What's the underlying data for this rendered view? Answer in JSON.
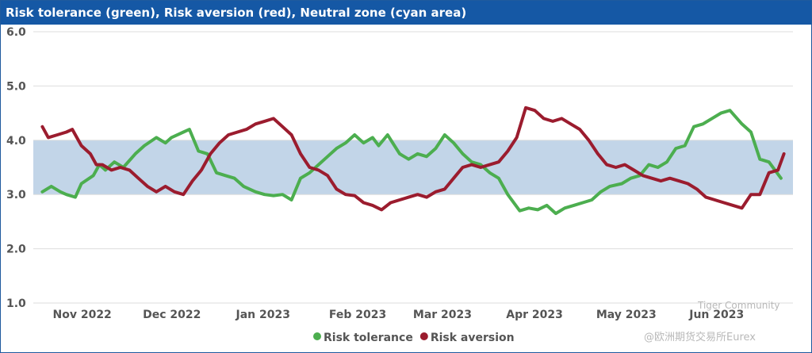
{
  "chart_data": {
    "type": "line",
    "title": "Risk tolerance (green), Risk aversion (red), Neutral zone (cyan area)",
    "ylim": [
      1.0,
      6.0
    ],
    "y_ticks": [
      "6.0",
      "5.0",
      "4.0",
      "3.0",
      "2.0",
      "1.0"
    ],
    "x_range": [
      "2022-10-25",
      "2023-07-05"
    ],
    "x_ticks": [
      {
        "date": "2022-11-01",
        "label": "Nov 2022"
      },
      {
        "date": "2022-12-01",
        "label": "Dec 2022"
      },
      {
        "date": "2023-01-01",
        "label": "Jan 2023"
      },
      {
        "date": "2023-02-01",
        "label": "Feb 2023"
      },
      {
        "date": "2023-03-01",
        "label": "Mar 2023"
      },
      {
        "date": "2023-04-01",
        "label": "Apr 2023"
      },
      {
        "date": "2023-05-01",
        "label": "May 2023"
      },
      {
        "date": "2023-06-01",
        "label": "Jun 2023"
      }
    ],
    "neutral_zone": {
      "low": 3.0,
      "high": 4.0,
      "color": "#c2d5e8"
    },
    "grid": true,
    "legend": "bottom",
    "series": [
      {
        "name": "Risk tolerance",
        "color": "#4cae4f",
        "x": [
          "2022-10-28",
          "2022-10-31",
          "2022-11-03",
          "2022-11-05",
          "2022-11-08",
          "2022-11-10",
          "2022-11-14",
          "2022-11-16",
          "2022-11-18",
          "2022-11-21",
          "2022-11-24",
          "2022-11-28",
          "2022-12-01",
          "2022-12-05",
          "2022-12-08",
          "2022-12-10",
          "2022-12-14",
          "2022-12-16",
          "2022-12-19",
          "2022-12-22",
          "2022-12-25",
          "2022-12-28",
          "2022-12-31",
          "2023-01-03",
          "2023-01-07",
          "2023-01-10",
          "2023-01-13",
          "2023-01-16",
          "2023-01-19",
          "2023-01-22",
          "2023-01-25",
          "2023-01-28",
          "2023-01-31",
          "2023-02-03",
          "2023-02-06",
          "2023-02-09",
          "2023-02-12",
          "2023-02-15",
          "2023-02-17",
          "2023-02-20",
          "2023-02-24",
          "2023-02-27",
          "2023-03-02",
          "2023-03-05",
          "2023-03-08",
          "2023-03-11",
          "2023-03-14",
          "2023-03-17",
          "2023-03-20",
          "2023-03-23",
          "2023-03-26",
          "2023-03-29",
          "2023-04-01",
          "2023-04-05",
          "2023-04-08",
          "2023-04-11",
          "2023-04-14",
          "2023-04-17",
          "2023-04-20",
          "2023-04-23",
          "2023-04-26",
          "2023-04-29",
          "2023-05-02",
          "2023-05-05",
          "2023-05-09",
          "2023-05-12",
          "2023-05-15",
          "2023-05-18",
          "2023-05-21",
          "2023-05-24",
          "2023-05-27",
          "2023-05-30",
          "2023-06-02",
          "2023-06-05",
          "2023-06-08",
          "2023-06-11",
          "2023-06-14",
          "2023-06-18",
          "2023-06-21",
          "2023-06-24",
          "2023-06-27",
          "2023-07-01"
        ],
        "y": [
          3.05,
          3.15,
          3.05,
          3.0,
          2.95,
          3.2,
          3.35,
          3.55,
          3.45,
          3.6,
          3.5,
          3.75,
          3.9,
          4.05,
          3.95,
          4.05,
          4.15,
          4.2,
          3.8,
          3.75,
          3.4,
          3.35,
          3.3,
          3.15,
          3.05,
          3.0,
          2.98,
          3.0,
          2.9,
          3.3,
          3.4,
          3.55,
          3.7,
          3.85,
          3.95,
          4.1,
          3.95,
          4.05,
          3.9,
          4.1,
          3.75,
          3.65,
          3.75,
          3.7,
          3.85,
          4.1,
          3.95,
          3.75,
          3.6,
          3.55,
          3.4,
          3.3,
          3.0,
          2.7,
          2.75,
          2.72,
          2.8,
          2.65,
          2.75,
          2.8,
          2.85,
          2.9,
          3.05,
          3.15,
          3.2,
          3.3,
          3.35,
          3.55,
          3.5,
          3.6,
          3.85,
          3.9,
          4.25,
          4.3,
          4.4,
          4.5,
          4.55,
          4.3,
          4.15,
          3.65,
          3.6,
          3.3
        ]
      },
      {
        "name": "Risk aversion",
        "color": "#9b1c2e",
        "x": [
          "2022-10-28",
          "2022-10-30",
          "2022-11-02",
          "2022-11-05",
          "2022-11-07",
          "2022-11-10",
          "2022-11-13",
          "2022-11-15",
          "2022-11-17",
          "2022-11-20",
          "2022-11-23",
          "2022-11-26",
          "2022-11-29",
          "2022-12-02",
          "2022-12-05",
          "2022-12-08",
          "2022-12-11",
          "2022-12-14",
          "2022-12-17",
          "2022-12-20",
          "2022-12-23",
          "2022-12-26",
          "2022-12-29",
          "2023-01-01",
          "2023-01-04",
          "2023-01-07",
          "2023-01-10",
          "2023-01-13",
          "2023-01-16",
          "2023-01-19",
          "2023-01-22",
          "2023-01-25",
          "2023-01-28",
          "2023-01-31",
          "2023-02-03",
          "2023-02-06",
          "2023-02-09",
          "2023-02-12",
          "2023-02-15",
          "2023-02-18",
          "2023-02-21",
          "2023-02-24",
          "2023-02-27",
          "2023-03-02",
          "2023-03-05",
          "2023-03-08",
          "2023-03-11",
          "2023-03-14",
          "2023-03-17",
          "2023-03-20",
          "2023-03-23",
          "2023-03-26",
          "2023-03-29",
          "2023-04-01",
          "2023-04-04",
          "2023-04-07",
          "2023-04-10",
          "2023-04-13",
          "2023-04-16",
          "2023-04-19",
          "2023-04-22",
          "2023-04-25",
          "2023-04-28",
          "2023-05-01",
          "2023-05-04",
          "2023-05-07",
          "2023-05-10",
          "2023-05-13",
          "2023-05-16",
          "2023-05-19",
          "2023-05-22",
          "2023-05-25",
          "2023-05-28",
          "2023-05-31",
          "2023-06-03",
          "2023-06-06",
          "2023-06-09",
          "2023-06-12",
          "2023-06-15",
          "2023-06-18",
          "2023-06-21",
          "2023-06-24",
          "2023-06-27",
          "2023-06-30",
          "2023-07-02"
        ],
        "y": [
          4.25,
          4.05,
          4.1,
          4.15,
          4.2,
          3.9,
          3.75,
          3.55,
          3.55,
          3.45,
          3.5,
          3.45,
          3.3,
          3.15,
          3.05,
          3.15,
          3.05,
          3.0,
          3.25,
          3.45,
          3.75,
          3.95,
          4.1,
          4.15,
          4.2,
          4.3,
          4.35,
          4.4,
          4.25,
          4.1,
          3.75,
          3.5,
          3.45,
          3.35,
          3.1,
          3.0,
          2.98,
          2.85,
          2.8,
          2.72,
          2.85,
          2.9,
          2.95,
          3.0,
          2.95,
          3.05,
          3.1,
          3.3,
          3.5,
          3.55,
          3.5,
          3.55,
          3.6,
          3.8,
          4.05,
          4.6,
          4.55,
          4.4,
          4.35,
          4.4,
          4.3,
          4.2,
          4.0,
          3.75,
          3.55,
          3.5,
          3.55,
          3.45,
          3.35,
          3.3,
          3.25,
          3.3,
          3.25,
          3.2,
          3.1,
          2.95,
          2.9,
          2.85,
          2.8,
          2.75,
          3.0,
          3.0,
          3.4,
          3.45,
          3.75
        ]
      }
    ]
  },
  "watermark": {
    "line1": "Tiger Community",
    "line2": "@欧洲期货交易所Eurex"
  }
}
